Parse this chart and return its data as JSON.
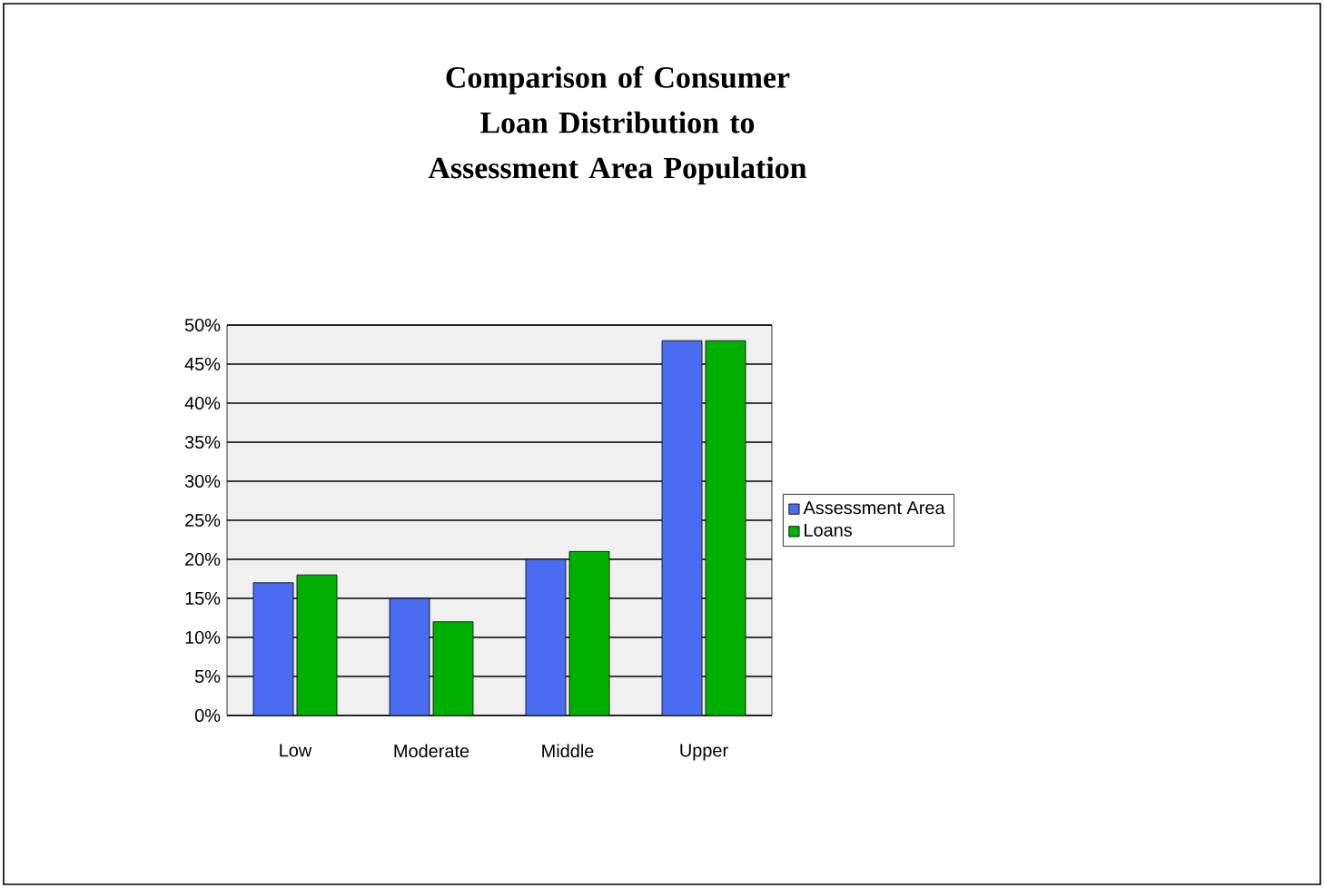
{
  "chart_data": {
    "type": "bar",
    "title": "Comparison of Consumer Loan Distribution to Assessment Area Population",
    "categories": [
      "Low",
      "Moderate",
      "Middle",
      "Upper"
    ],
    "series": [
      {
        "name": "Assessment Area",
        "color": "#4a6cf0",
        "values": [
          17,
          15,
          20,
          48
        ]
      },
      {
        "name": "Loans",
        "color": "#00b000",
        "values": [
          18,
          12,
          21,
          48
        ]
      }
    ],
    "ylim": [
      0,
      50
    ],
    "yticks": [
      {
        "value": 0,
        "label": "0%"
      },
      {
        "value": 5,
        "label": "5%"
      },
      {
        "value": 10,
        "label": "10%"
      },
      {
        "value": 15,
        "label": "15%"
      },
      {
        "value": 20,
        "label": "20%"
      },
      {
        "value": 25,
        "label": "25%"
      },
      {
        "value": 30,
        "label": "30%"
      },
      {
        "value": 35,
        "label": "35%"
      },
      {
        "value": 40,
        "label": "40%"
      },
      {
        "value": 45,
        "label": "45%"
      },
      {
        "value": 50,
        "label": "50%"
      }
    ],
    "grid": "y",
    "legend": "right"
  }
}
